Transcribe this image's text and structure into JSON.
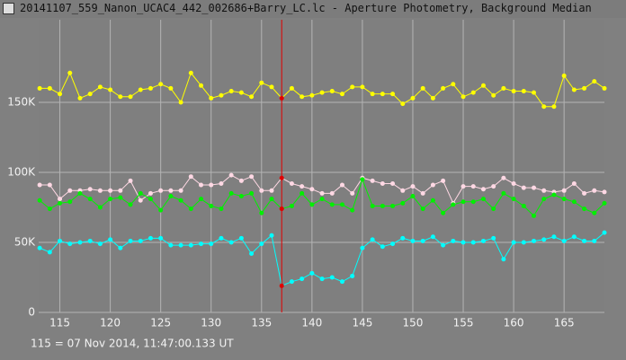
{
  "chart_data": {
    "type": "line",
    "title": "20141107_559_Nanon_UCAC4_442_002686+Barry_LC.lc - Aperture Photometry, Background Median",
    "footer": "115 = 07 Nov 2014, 11:47:00.133 UT",
    "x": [
      113,
      114,
      115,
      116,
      117,
      118,
      119,
      120,
      121,
      122,
      123,
      124,
      125,
      126,
      127,
      128,
      129,
      130,
      131,
      132,
      133,
      134,
      135,
      136,
      137,
      138,
      139,
      140,
      141,
      142,
      143,
      144,
      145,
      146,
      147,
      148,
      149,
      150,
      151,
      152,
      153,
      154,
      155,
      156,
      157,
      158,
      159,
      160,
      161,
      162,
      163,
      164,
      165,
      166,
      167,
      168,
      169
    ],
    "xlim": [
      112.9,
      169
    ],
    "xticks": [
      115,
      120,
      125,
      130,
      135,
      140,
      145,
      150,
      155,
      160,
      165
    ],
    "ylim": [
      0,
      209000
    ],
    "yticks": [
      0,
      {
        "value": 50000,
        "label": "50K"
      },
      {
        "value": 100000,
        "label": "100K"
      },
      {
        "value": 150000,
        "label": "150K"
      }
    ],
    "grid": true,
    "cursor_x": 137,
    "cursor_color": "#e00000",
    "series": [
      {
        "color": "#ffff00",
        "values": [
          160000,
          160000,
          156000,
          171000,
          153000,
          156000,
          161000,
          159000,
          154000,
          154000,
          159000,
          160000,
          163000,
          160000,
          150000,
          171000,
          162000,
          153000,
          155000,
          158000,
          157000,
          154000,
          164000,
          161000,
          153000,
          160000,
          154000,
          155000,
          157000,
          158000,
          156000,
          161000,
          161000,
          156000,
          156000,
          156000,
          149000,
          153000,
          160000,
          153000,
          160000,
          163000,
          154000,
          157000,
          162000,
          155000,
          160000,
          158000,
          158000,
          157000,
          147000,
          147000,
          169000,
          159000,
          160000,
          165000,
          160000
        ]
      },
      {
        "color": "#ffd8e4",
        "values": [
          91000,
          91000,
          81000,
          87000,
          87000,
          88000,
          87000,
          87000,
          87000,
          94000,
          80000,
          85000,
          87000,
          87000,
          87000,
          97000,
          91000,
          91000,
          92000,
          98000,
          94000,
          97000,
          87000,
          87000,
          96000,
          92000,
          90000,
          88000,
          85000,
          85000,
          91000,
          85000,
          96000,
          94000,
          92000,
          92000,
          87000,
          90000,
          85000,
          91000,
          94000,
          78000,
          90000,
          90000,
          88000,
          90000,
          96000,
          92000,
          89000,
          89000,
          87000,
          86000,
          87000,
          92000,
          85000,
          87000,
          86000
        ]
      },
      {
        "color": "#00f000",
        "values": [
          80000,
          74000,
          78000,
          79000,
          85000,
          81000,
          75000,
          81000,
          82000,
          77000,
          85000,
          81000,
          73000,
          83000,
          80000,
          74000,
          81000,
          76000,
          74000,
          85000,
          83000,
          85000,
          71000,
          81000,
          74000,
          76000,
          85000,
          77000,
          81000,
          77000,
          77000,
          73000,
          95000,
          76000,
          76000,
          76000,
          78000,
          83000,
          74000,
          80000,
          71000,
          77000,
          79000,
          79000,
          81000,
          74000,
          85000,
          81000,
          76000,
          69000,
          81000,
          84000,
          81000,
          79000,
          74000,
          71000,
          78000
        ]
      },
      {
        "color": "#00ffff",
        "values": [
          46000,
          43000,
          51000,
          49000,
          50000,
          51000,
          49000,
          52000,
          46000,
          51000,
          51000,
          53000,
          53000,
          48000,
          48000,
          48000,
          49000,
          49000,
          53000,
          50000,
          53000,
          42000,
          49000,
          55000,
          19000,
          22000,
          24000,
          28000,
          24000,
          25000,
          22000,
          26000,
          46000,
          52000,
          47000,
          49000,
          53000,
          51000,
          51000,
          54000,
          48000,
          51000,
          50000,
          50000,
          51000,
          53000,
          38000,
          50000,
          50000,
          51000,
          52000,
          54000,
          51000,
          54000,
          51000,
          51000,
          57000
        ]
      }
    ]
  }
}
